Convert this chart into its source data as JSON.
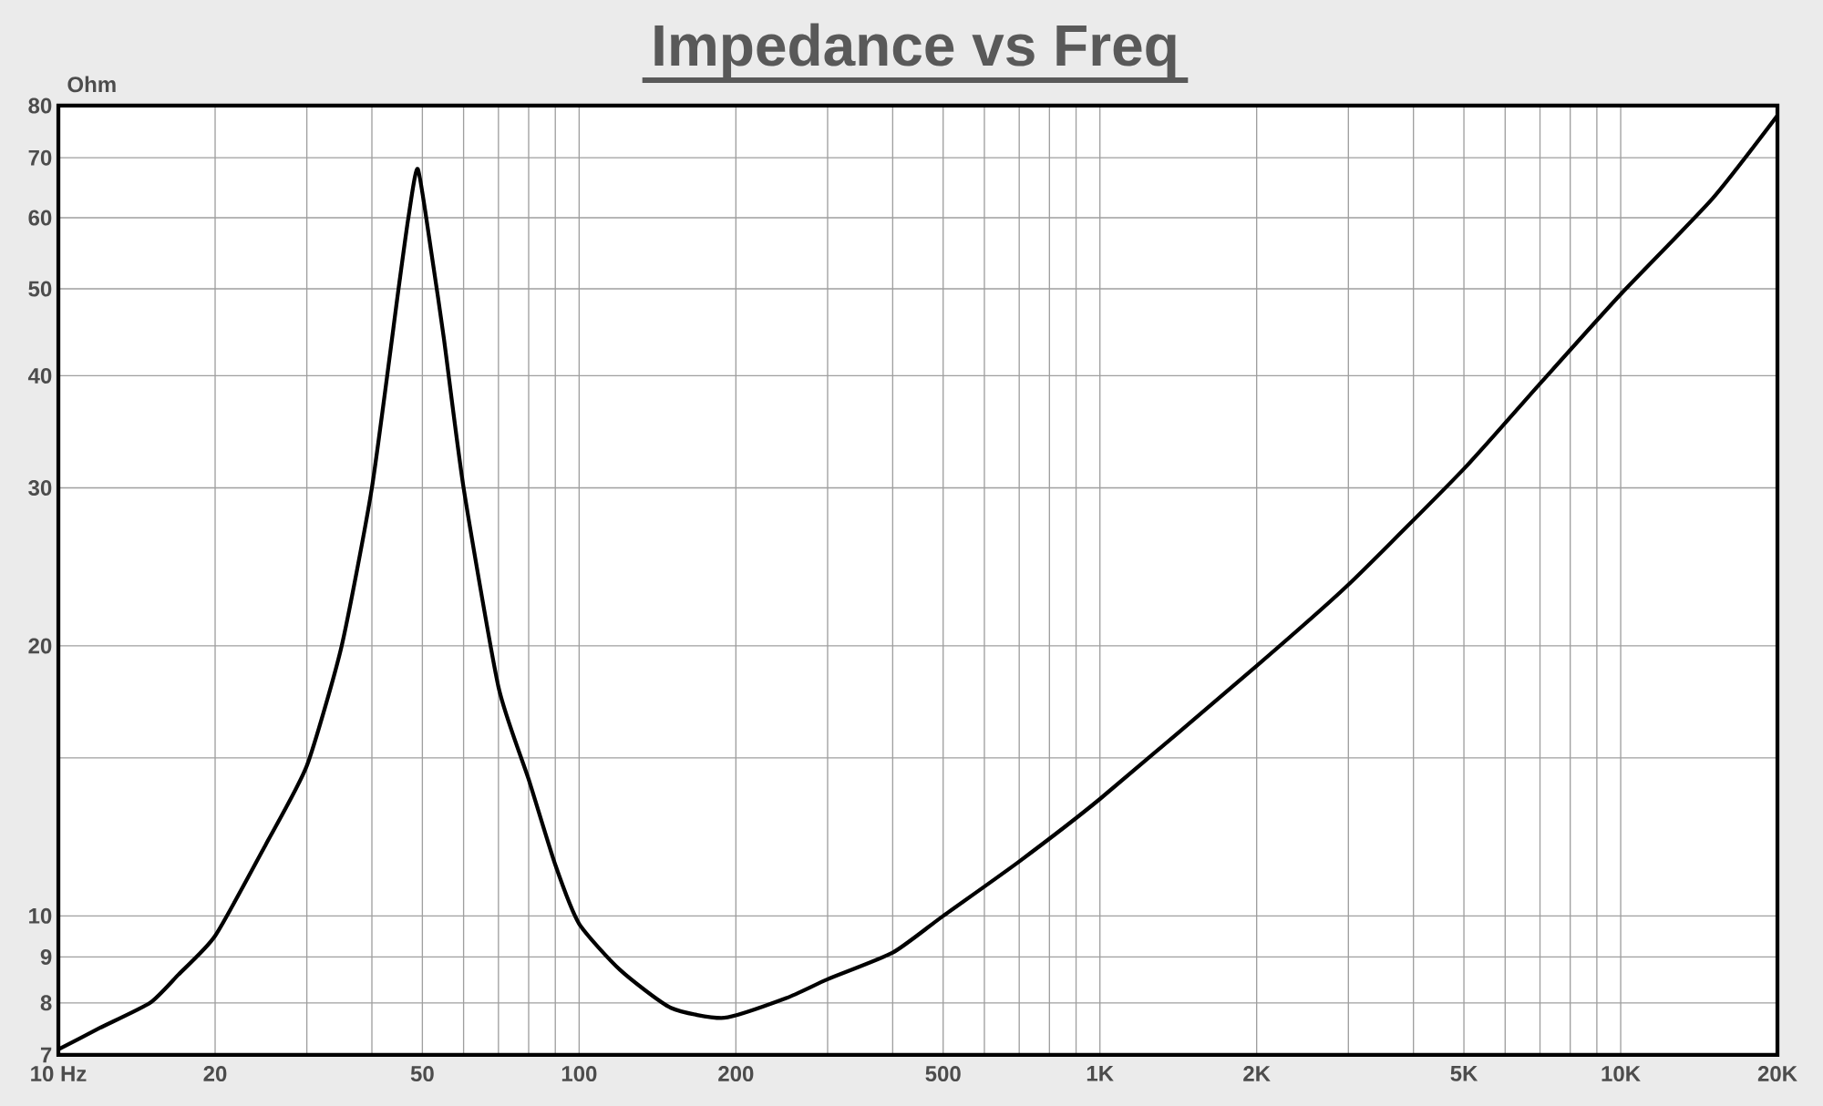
{
  "chart_data": {
    "type": "line",
    "title": "Impedance vs Freq",
    "ylabel": "Ohm",
    "log": "xy",
    "grid": true,
    "marker": "none",
    "line_style": "solid",
    "x": [
      10,
      12,
      15,
      17,
      20,
      25,
      30,
      35,
      40,
      45,
      47,
      49,
      52,
      55,
      60,
      70,
      80,
      90,
      100,
      120,
      150,
      190,
      250,
      300,
      400,
      500,
      700,
      1000,
      2000,
      3000,
      5000,
      7000,
      10000,
      15000,
      20000
    ],
    "series": [
      {
        "color": "#000000",
        "values": [
          7.1,
          7.5,
          8.0,
          8.6,
          9.5,
          12.0,
          14.7,
          20.0,
          30.0,
          50.0,
          60.0,
          68.0,
          55.0,
          44.0,
          30.0,
          18.0,
          14.2,
          11.4,
          9.8,
          8.7,
          7.9,
          7.7,
          8.1,
          8.5,
          9.1,
          10.0,
          11.5,
          13.5,
          19.0,
          23.4,
          31.5,
          39.2,
          49.3,
          63.0,
          78.0
        ]
      }
    ],
    "xlim": [
      10,
      20000
    ],
    "ylim": [
      7,
      80
    ],
    "xticks": [
      {
        "value": 10,
        "label": "10 Hz"
      },
      20,
      {
        "value": 30,
        "label": null
      },
      {
        "value": 40,
        "label": null
      },
      50,
      {
        "value": 60,
        "label": null
      },
      {
        "value": 70,
        "label": null
      },
      {
        "value": 80,
        "label": null
      },
      {
        "value": 90,
        "label": null
      },
      100,
      200,
      {
        "value": 300,
        "label": null
      },
      {
        "value": 400,
        "label": null
      },
      500,
      {
        "value": 600,
        "label": null
      },
      {
        "value": 700,
        "label": null
      },
      {
        "value": 800,
        "label": null
      },
      {
        "value": 900,
        "label": null
      },
      {
        "value": 1000,
        "label": "1K"
      },
      {
        "value": 2000,
        "label": "2K"
      },
      {
        "value": 3000,
        "label": null
      },
      {
        "value": 4000,
        "label": null
      },
      {
        "value": 5000,
        "label": "5K"
      },
      {
        "value": 6000,
        "label": null
      },
      {
        "value": 7000,
        "label": null
      },
      {
        "value": 8000,
        "label": null
      },
      {
        "value": 9000,
        "label": null
      },
      {
        "value": 10000,
        "label": "10K"
      },
      {
        "value": 20000,
        "label": "20K"
      }
    ],
    "yticks": [
      7,
      8,
      9,
      10,
      {
        "value": 15,
        "label": null
      },
      20,
      30,
      40,
      50,
      60,
      70,
      80
    ]
  }
}
